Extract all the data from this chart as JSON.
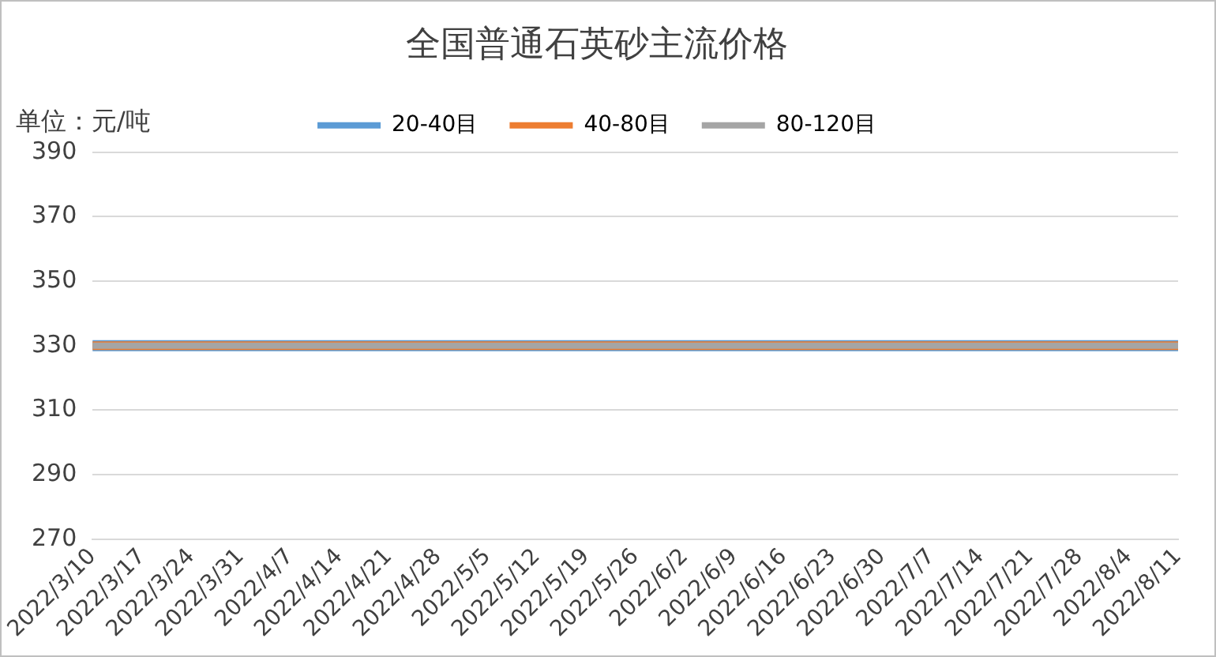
{
  "chart_data": {
    "type": "line",
    "title": "全国普通石英砂主流价格",
    "ylabel": "单位：元/吨",
    "categories": [
      "2022/3/10",
      "2022/3/17",
      "2022/3/24",
      "2022/3/31",
      "2022/4/7",
      "2022/4/14",
      "2022/4/21",
      "2022/4/28",
      "2022/5/5",
      "2022/5/12",
      "2022/5/19",
      "2022/5/26",
      "2022/6/2",
      "2022/6/9",
      "2022/6/16",
      "2022/6/23",
      "2022/6/30",
      "2022/7/7",
      "2022/7/14",
      "2022/7/21",
      "2022/7/28",
      "2022/8/4",
      "2022/8/11"
    ],
    "series": [
      {
        "name": "20-40目",
        "color": "#5b9bd5",
        "values": [
          330,
          330,
          330,
          330,
          330,
          330,
          330,
          330,
          330,
          330,
          330,
          330,
          330,
          330,
          330,
          330,
          330,
          330,
          330,
          330,
          330,
          330,
          330
        ]
      },
      {
        "name": "40-80目",
        "color": "#ed7d31",
        "values": [
          330,
          330,
          330,
          330,
          330,
          330,
          330,
          330,
          330,
          330,
          330,
          330,
          330,
          330,
          330,
          330,
          330,
          330,
          330,
          330,
          330,
          330,
          330
        ]
      },
      {
        "name": "80-120目",
        "color": "#a5a5a5",
        "values": [
          330,
          330,
          330,
          330,
          330,
          330,
          330,
          330,
          330,
          330,
          330,
          330,
          330,
          330,
          330,
          330,
          330,
          330,
          330,
          330,
          330,
          330,
          330
        ]
      }
    ],
    "ylim": [
      270,
      390
    ],
    "yticks": [
      270,
      290,
      310,
      330,
      350,
      370,
      390
    ],
    "grid": "y",
    "legend": "top",
    "marker": "none",
    "line_style": "solid"
  }
}
